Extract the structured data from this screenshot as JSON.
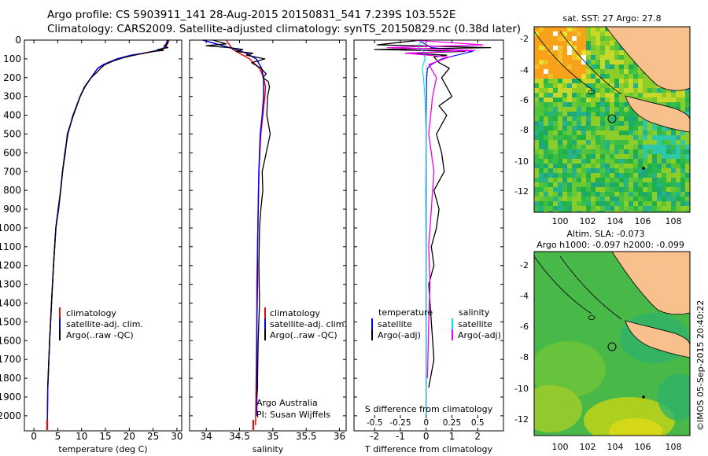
{
  "header": {
    "line1": "Argo profile: CS 5903911_141 28-Aug-2015 20150831_541 7.239S 103.552E",
    "line2": "Climatology: CARS2009. Satellite-adjusted climatology: synTS_20150829.nc (0.38d later)"
  },
  "colors": {
    "climatology": "#ff0000",
    "satellite": "#0000ff",
    "argo": "#000000",
    "sat_salinity": "#00e5ee",
    "argo_salinity": "#ee00ee",
    "land": "#f7c08c"
  },
  "depth_axis": {
    "ticks": [
      0,
      100,
      200,
      300,
      400,
      500,
      600,
      700,
      800,
      900,
      1000,
      1100,
      1200,
      1300,
      1400,
      1500,
      1600,
      1700,
      1800,
      1900,
      2000
    ],
    "range": [
      0,
      2080
    ]
  },
  "chart_data": [
    {
      "type": "line",
      "name": "temperature",
      "xlabel": "temperature (deg C)",
      "xlim": [
        -2,
        31
      ],
      "xticks": [
        0,
        5,
        10,
        15,
        20,
        25,
        30
      ],
      "legend": [
        "climatology",
        "satellite-adj. clim.",
        "Argo(..raw -QC)"
      ],
      "series": [
        {
          "name": "climatology",
          "x": [
            28.3,
            28.2,
            28.0,
            27.6,
            26.8,
            25.3,
            23.2,
            20.6,
            17.5,
            14.6,
            13.4,
            12.0,
            10.6,
            9.7,
            8.2,
            7.1,
            6.5,
            6.0,
            5.6,
            5.1,
            4.6,
            4.1,
            3.7,
            3.3,
            2.9,
            2.8
          ],
          "y": [
            0,
            10,
            20,
            40,
            50,
            60,
            70,
            80,
            100,
            130,
            150,
            200,
            250,
            300,
            400,
            500,
            600,
            700,
            800,
            900,
            1000,
            1200,
            1400,
            1600,
            1850,
            2050
          ]
        },
        {
          "name": "satellite-adj. clim.",
          "x": [
            28.0,
            27.9,
            27.7,
            27.3,
            26.5,
            25.0,
            23.0,
            20.4,
            17.4,
            14.6,
            13.4,
            12.0,
            10.6,
            9.7,
            8.2,
            7.1,
            6.5,
            6.0,
            5.6,
            5.1,
            4.6,
            4.1,
            3.7,
            3.3,
            2.9,
            2.8
          ],
          "y": [
            0,
            10,
            20,
            40,
            50,
            60,
            70,
            80,
            100,
            130,
            150,
            200,
            250,
            300,
            400,
            500,
            600,
            700,
            800,
            900,
            1000,
            1200,
            1400,
            1600,
            1850,
            2050
          ]
        },
        {
          "name": "Argo(..raw -QC)",
          "x": [
            28.1,
            28.0,
            27.3,
            28.1,
            26.0,
            27.2,
            25.1,
            23.9,
            22.1,
            20.3,
            18.6,
            16.8,
            14.9,
            14.0,
            13.3,
            12.0,
            10.7,
            9.7,
            8.3,
            7.0,
            6.6,
            6.0,
            5.6,
            5.2,
            4.6,
            4.1,
            3.7,
            3.3,
            2.9
          ],
          "y": [
            0,
            20,
            30,
            40,
            50,
            55,
            60,
            65,
            75,
            85,
            95,
            110,
            130,
            150,
            170,
            200,
            250,
            300,
            400,
            500,
            600,
            700,
            800,
            900,
            1000,
            1200,
            1400,
            1600,
            1850
          ]
        }
      ]
    },
    {
      "type": "line",
      "name": "salinity",
      "xlabel": "salinity",
      "xlim": [
        33.75,
        36.1
      ],
      "xticks": [
        34,
        34.5,
        35,
        35.5,
        36
      ],
      "xticklabels": [
        "34",
        "34.5",
        "35",
        "35.5",
        "36"
      ],
      "legend": [
        "climatology",
        "satellite-adj. clim.",
        "Argo(..raw -QC)"
      ],
      "note": [
        "Argo Australia",
        "PI: Susan Wijffels"
      ],
      "series": [
        {
          "name": "climatology",
          "x": [
            34.3,
            34.35,
            34.4,
            34.5,
            34.65,
            34.8,
            34.86,
            34.89,
            34.88,
            34.85,
            34.82,
            34.79,
            34.78,
            34.77,
            34.76,
            34.76,
            34.75,
            34.74
          ],
          "y": [
            0,
            25,
            50,
            70,
            100,
            150,
            200,
            250,
            300,
            400,
            500,
            700,
            900,
            1100,
            1300,
            1500,
            1800,
            2050
          ]
        },
        {
          "name": "satellite-adj. clim.",
          "x": [
            33.95,
            34.2,
            34.45,
            34.6,
            34.75,
            34.83,
            34.86,
            34.86,
            34.84,
            34.81,
            34.79,
            34.78,
            34.77,
            34.77,
            34.76,
            34.76,
            34.76
          ],
          "y": [
            0,
            25,
            50,
            70,
            100,
            150,
            200,
            300,
            400,
            500,
            700,
            900,
            1100,
            1300,
            1500,
            1800,
            2000
          ]
        },
        {
          "name": "Argo(..raw -QC)",
          "x": [
            34.1,
            34.3,
            34.0,
            34.35,
            34.55,
            34.45,
            34.7,
            34.6,
            34.88,
            34.68,
            34.82,
            34.9,
            34.85,
            34.93,
            34.95,
            34.92,
            34.91,
            34.96,
            34.9,
            34.84,
            34.85,
            34.82,
            34.8,
            34.79,
            34.8,
            34.78,
            34.77,
            34.77,
            34.76
          ],
          "y": [
            0,
            20,
            30,
            40,
            50,
            60,
            70,
            80,
            100,
            120,
            150,
            180,
            200,
            220,
            250,
            300,
            400,
            500,
            600,
            700,
            800,
            900,
            1000,
            1200,
            1400,
            1600,
            1800,
            1850,
            1900
          ]
        }
      ]
    },
    {
      "type": "line",
      "name": "difference-from-climatology",
      "xlabel": "T difference from climatology",
      "xlabel_top": "S difference from climatology",
      "xlim": [
        -2.8,
        3
      ],
      "xticks": [
        -2,
        -1,
        0,
        1,
        2
      ],
      "top_xticks": [
        -0.5,
        -0.25,
        0,
        0.25,
        0.5
      ],
      "top_xticklabels": [
        "-0.5",
        "-0.25",
        "0",
        "0.25",
        "0.5"
      ],
      "legend_temperature": {
        "title": "temperature",
        "items": [
          "satellite",
          "Argo(-adj)"
        ]
      },
      "legend_salinity": {
        "title": "salinity",
        "items": [
          "satellite",
          "Argo(-adj)"
        ]
      },
      "series": [
        {
          "name": "temperature satellite",
          "x": [
            -0.3,
            0.2,
            1.8,
            1.2,
            0.6,
            0.2,
            0.05,
            0.02,
            0,
            0,
            0,
            0
          ],
          "y": [
            0,
            40,
            60,
            80,
            100,
            130,
            150,
            200,
            400,
            800,
            1400,
            2000
          ]
        },
        {
          "name": "temperature Argo(-adj)",
          "x": [
            -0.2,
            -1.9,
            2.5,
            -2.0,
            1.5,
            -0.8,
            0.8,
            0.3,
            0.5,
            0.9,
            0.6,
            1.0,
            0.5,
            0.8,
            0.4,
            0.6,
            0.7,
            0.3,
            0.5,
            0.4,
            0.2,
            0.3,
            0.1,
            0.2,
            0.3,
            0.1
          ],
          "y": [
            0,
            25,
            40,
            50,
            60,
            70,
            80,
            90,
            120,
            150,
            200,
            300,
            350,
            400,
            500,
            600,
            700,
            800,
            900,
            1000,
            1100,
            1200,
            1300,
            1500,
            1700,
            1850
          ]
        },
        {
          "name": "salinity satellite",
          "x": [
            -0.2,
            -0.3,
            -0.1,
            -0.05,
            -0.15,
            -0.1,
            -0.05,
            0,
            -0.02,
            0,
            0
          ],
          "y": [
            0,
            40,
            60,
            100,
            150,
            200,
            300,
            500,
            800,
            1300,
            2000
          ]
        },
        {
          "name": "salinity Argo(-adj)",
          "x": [
            -0.5,
            2.2,
            -1.5,
            1.9,
            -0.8,
            0.9,
            0.1,
            0.4,
            0.25,
            0.1,
            0.3,
            0.2,
            0.1,
            0.15,
            0.1,
            0.05
          ],
          "y": [
            0,
            25,
            40,
            55,
            70,
            90,
            130,
            200,
            300,
            500,
            700,
            900,
            1100,
            1300,
            1500,
            1800
          ]
        }
      ]
    }
  ],
  "maps": {
    "sst": {
      "title": "sat. SST: 27 Argo: 27.8",
      "yticks": [
        "-2",
        "-4",
        "-6",
        "-8",
        "-10",
        "-12"
      ],
      "xticks": [
        "100",
        "102",
        "104",
        "106",
        "108"
      ]
    },
    "sla": {
      "title1": "Altim. SLA: -0.073",
      "title2": "Argo h1000: -0.097 h2000: -0.099",
      "yticks": [
        "-2",
        "-4",
        "-6",
        "-8",
        "-10",
        "-12"
      ],
      "xticks": [
        "100",
        "102",
        "104",
        "106",
        "108"
      ]
    },
    "credit": "©IMOS 05-Sep-2015 20:40:22"
  }
}
